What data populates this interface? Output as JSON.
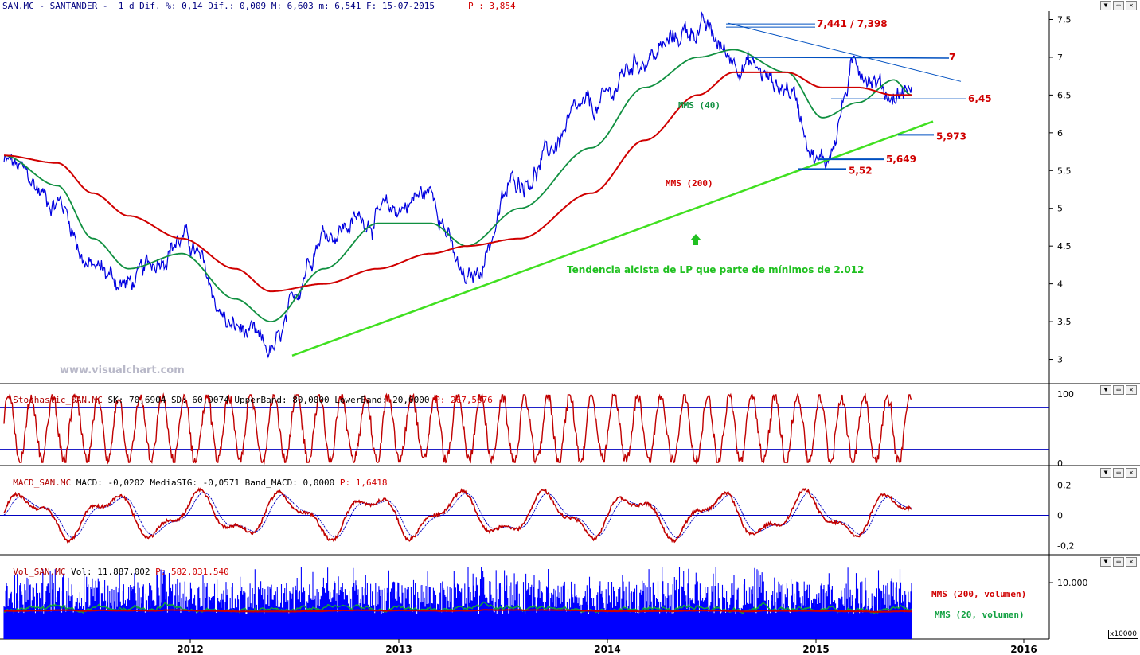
{
  "header": {
    "symbol_line": "SAN.MC - SANTANDER -  1 d Dif. %: 0,14 Dif.: 0,009 M: 6,603 m: 6,541 F: 15-07-2015",
    "p_label": "P : 3,854"
  },
  "window_buttons": [
    "▼",
    "▭",
    "✕"
  ],
  "watermark": "www.visualchart.com",
  "x_axis_years": [
    "2012",
    "2013",
    "2014",
    "2015",
    "2016"
  ],
  "volume_multiplier": "x10000",
  "colors": {
    "price": "#0000e0",
    "mms40": "#109040",
    "mms200": "#d00000",
    "trend": "#40e020",
    "level_lines": "#0050c0",
    "stochastic": "#c00000",
    "macd": "#c00000",
    "macd_signal": "#0000c0",
    "volume_bars": "#0000ff"
  },
  "annotations": {
    "top_pair": "7,441 / 7,398",
    "level_7": "7",
    "level_645": "6,45",
    "level_5973": "5,973",
    "level_5649": "5,649",
    "level_552": "5,52",
    "mms40_label": "MMS (40)",
    "mms200_label": "MMS (200)",
    "trend_label": "Tendencia alcista de LP que parte de mínimos de 2.012",
    "vol_mms200_label": "MMS (200, volumen)",
    "vol_mms20_label": "MMS (20, volumen)"
  },
  "panes": {
    "stochastic": {
      "name": "Stochastic_SAN.MC",
      "values": "SK: 70,6904 SD: 60,9074 UpperBand: 80,0000 LowerBand: 20,0000",
      "p": "P: 267,5676"
    },
    "macd": {
      "name": "MACD_SAN.MC",
      "values": "MACD: -0,0202 MediaSIG: -0,0571 Band_MACD: 0,0000",
      "p": "P: 1,6418"
    },
    "volume": {
      "name": "Vol_SAN.MC",
      "values": "Vol: 11.887.002",
      "p": "P: 582.031.540"
    }
  },
  "chart_data": [
    {
      "type": "line",
      "title": "SAN.MC - SANTANDER",
      "x": [
        "2011-04",
        "2011-07",
        "2011-09",
        "2011-11",
        "2012-02",
        "2012-05",
        "2012-07",
        "2012-10",
        "2013-01",
        "2013-04",
        "2013-06",
        "2013-09",
        "2014-01",
        "2014-04",
        "2014-07",
        "2014-09",
        "2014-12",
        "2015-02",
        "2015-04",
        "2015-06",
        "2015-07"
      ],
      "series": [
        {
          "name": "Close",
          "values": [
            5.6,
            5.1,
            4.2,
            4.0,
            4.6,
            3.4,
            3.1,
            4.7,
            4.9,
            5.2,
            4.0,
            5.4,
            6.3,
            7.0,
            7.4,
            7.0,
            6.6,
            5.6,
            6.9,
            6.5,
            6.6
          ]
        },
        {
          "name": "MMS (40)",
          "values": [
            5.7,
            5.3,
            4.6,
            4.2,
            4.4,
            3.8,
            3.5,
            4.2,
            4.8,
            4.8,
            4.5,
            5.0,
            5.8,
            6.6,
            7.0,
            7.1,
            6.8,
            6.2,
            6.4,
            6.7,
            6.5
          ]
        },
        {
          "name": "MMS (200)",
          "values": [
            5.7,
            5.6,
            5.2,
            4.9,
            4.6,
            4.2,
            3.9,
            4.0,
            4.2,
            4.4,
            4.5,
            4.6,
            5.2,
            5.9,
            6.5,
            6.8,
            6.8,
            6.6,
            6.6,
            6.5,
            6.5
          ]
        }
      ],
      "ylim": [
        2.7,
        7.6
      ],
      "yticks": [
        "3",
        "3,5",
        "4",
        "4,5",
        "5",
        "5,5",
        "6",
        "6,5",
        "7",
        "7,5"
      ],
      "levels": [
        7.441,
        7.398,
        7,
        6.45,
        5.973,
        5.649,
        5.52
      ]
    },
    {
      "type": "line",
      "title": "Stochastic_SAN.MC",
      "ylim": [
        0,
        100
      ],
      "yticks": [
        "0",
        "100"
      ],
      "bands": [
        20,
        80
      ]
    },
    {
      "type": "line",
      "title": "MACD_SAN.MC",
      "ylim": [
        -0.25,
        0.25
      ],
      "yticks": [
        "-0,2",
        "0",
        "0,2"
      ]
    },
    {
      "type": "bar",
      "title": "Vol_SAN.MC",
      "yticks": [
        "10.000"
      ]
    }
  ]
}
